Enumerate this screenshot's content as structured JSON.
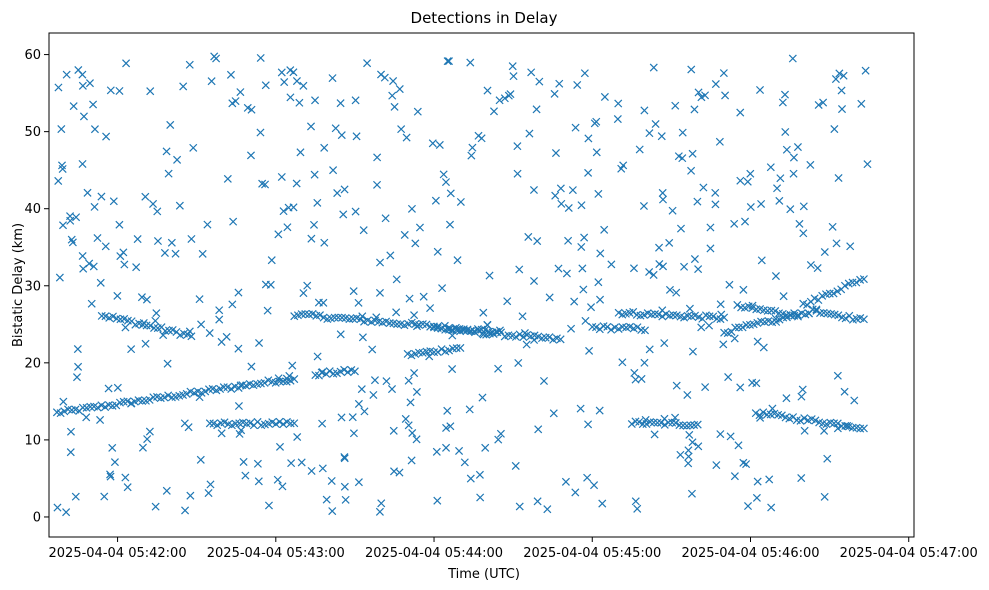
{
  "chart_data": {
    "type": "scatter",
    "title": "Detections in Delay",
    "xlabel": "Time (UTC)",
    "ylabel": "Bistatic Delay (km)",
    "marker": "x",
    "color": "#1f77b4",
    "grid": false,
    "x_ticks": [
      "2025-04-04 05:42:00",
      "2025-04-04 05:43:00",
      "2025-04-04 05:44:00",
      "2025-04-04 05:45:00",
      "2025-04-04 05:46:00",
      "2025-04-04 05:47:00"
    ],
    "xlim": [
      "2025-04-04 05:41:34",
      "2025-04-04 05:47:02"
    ],
    "y_ticks": [
      0,
      10,
      20,
      30,
      40,
      50,
      60
    ],
    "ylim": [
      -2.6,
      62.8
    ],
    "tracks": [
      {
        "start": [
          "2025-04-04 05:41:37",
          13.5
        ],
        "end": [
          "2025-04-04 05:43:07",
          18.0
        ]
      },
      {
        "start": [
          "2025-04-04 05:41:54",
          26.2
        ],
        "end": [
          "2025-04-04 05:42:28",
          23.5
        ]
      },
      {
        "start": [
          "2025-04-04 05:42:35",
          12.0
        ],
        "end": [
          "2025-04-04 05:43:07",
          12.2
        ]
      },
      {
        "start": [
          "2025-04-04 05:43:07",
          26.3
        ],
        "end": [
          "2025-04-04 05:44:25",
          24.0
        ]
      },
      {
        "start": [
          "2025-04-04 05:43:15",
          18.5
        ],
        "end": [
          "2025-04-04 05:43:30",
          19.0
        ]
      },
      {
        "start": [
          "2025-04-04 05:43:50",
          21.0
        ],
        "end": [
          "2025-04-04 05:44:10",
          22.0
        ]
      },
      {
        "start": [
          "2025-04-04 05:44:00",
          24.5
        ],
        "end": [
          "2025-04-04 05:44:48",
          23.0
        ]
      },
      {
        "start": [
          "2025-04-04 05:45:00",
          24.6
        ],
        "end": [
          "2025-04-04 05:45:20",
          24.4
        ]
      },
      {
        "start": [
          "2025-04-04 05:45:15",
          12.2
        ],
        "end": [
          "2025-04-04 05:45:40",
          12.0
        ]
      },
      {
        "start": [
          "2025-04-04 05:45:10",
          26.5
        ],
        "end": [
          "2025-04-04 05:45:50",
          25.8
        ]
      },
      {
        "start": [
          "2025-04-04 05:45:55",
          27.3
        ],
        "end": [
          "2025-04-04 05:46:18",
          26.2
        ]
      },
      {
        "start": [
          "2025-04-04 05:45:50",
          24.0
        ],
        "end": [
          "2025-04-04 05:46:25",
          26.8
        ]
      },
      {
        "start": [
          "2025-04-04 05:46:02",
          13.5
        ],
        "end": [
          "2025-04-04 05:46:43",
          11.6
        ]
      },
      {
        "start": [
          "2025-04-04 05:46:20",
          27.5
        ],
        "end": [
          "2025-04-04 05:46:43",
          31.0
        ]
      },
      {
        "start": [
          "2025-04-04 05:46:25",
          26.8
        ],
        "end": [
          "2025-04-04 05:46:43",
          25.5
        ]
      }
    ],
    "clutter": {
      "time_range": [
        "2025-04-04 05:41:37",
        "2025-04-04 05:46:45"
      ],
      "delay_range": [
        0.5,
        59.8
      ],
      "count": 560
    }
  }
}
